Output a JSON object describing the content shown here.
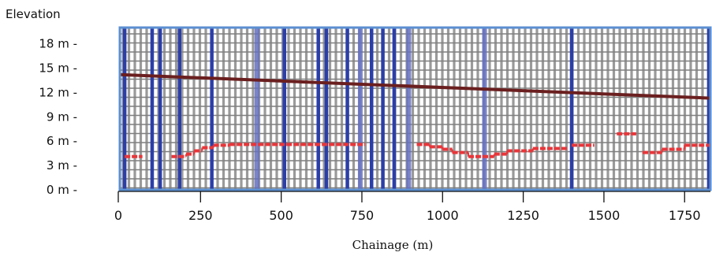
{
  "colors": {
    "plot_border": "#5b8fd1",
    "grid_vertical": "#9a9a9a",
    "grid_horizontal": "#7f7f7f",
    "marker_line": "#2b3ea8",
    "marker_line_faint": "#6470c2",
    "elevation_line": "#6b1f1f",
    "ground_dash": "#e8363a",
    "axis": "#111111"
  },
  "chart_data": {
    "type": "line",
    "xlabel": "Chainage (m)",
    "ylabel": "Elevation",
    "xlim": [
      0,
      1830
    ],
    "ylim": [
      0,
      20
    ],
    "x_ticks": [
      0,
      250,
      500,
      750,
      1000,
      1250,
      1500,
      1750
    ],
    "x_tick_labels": [
      "0",
      "250",
      "500",
      "750",
      "1000",
      "1250",
      "1500",
      "1750"
    ],
    "y_ticks": [
      0,
      3,
      6,
      9,
      12,
      15,
      18
    ],
    "y_tick_labels": [
      "0 m -",
      "3 m -",
      "6 m -",
      "9 m -",
      "12 m -",
      "15 m -",
      "18 m -"
    ],
    "grid": true,
    "series": [
      {
        "kind": "line",
        "x": [
          0,
          1830
        ],
        "y": [
          14.2,
          11.3
        ]
      },
      {
        "kind": "dashed-steps",
        "segments": [
          {
            "x": [
              15,
              70
            ],
            "y": 4.1
          },
          {
            "x": [
              160,
              205
            ],
            "y": 4.1
          },
          {
            "x": [
              205,
              230
            ],
            "y": 4.4
          },
          {
            "x": [
              230,
              255
            ],
            "y": 4.8
          },
          {
            "x": [
              255,
              290
            ],
            "y": 5.2
          },
          {
            "x": [
              290,
              340
            ],
            "y": 5.5
          },
          {
            "x": [
              340,
              760
            ],
            "y": 5.6
          },
          {
            "x": [
              920,
              960
            ],
            "y": 5.6
          },
          {
            "x": [
              960,
              1000
            ],
            "y": 5.3
          },
          {
            "x": [
              1000,
              1030
            ],
            "y": 5.0
          },
          {
            "x": [
              1030,
              1080
            ],
            "y": 4.6
          },
          {
            "x": [
              1080,
              1160
            ],
            "y": 4.1
          },
          {
            "x": [
              1160,
              1200
            ],
            "y": 4.4
          },
          {
            "x": [
              1200,
              1280
            ],
            "y": 4.8
          },
          {
            "x": [
              1280,
              1390
            ],
            "y": 5.1
          },
          {
            "x": [
              1400,
              1470
            ],
            "y": 5.5
          },
          {
            "x": [
              1540,
              1600
            ],
            "y": 6.9
          },
          {
            "x": [
              1620,
              1680
            ],
            "y": 4.6
          },
          {
            "x": [
              1680,
              1750
            ],
            "y": 5.0
          },
          {
            "x": [
              1750,
              1830
            ],
            "y": 5.5
          }
        ]
      },
      {
        "kind": "vertical-markers",
        "x": [
          15,
          100,
          125,
          185,
          285,
          425,
          510,
          615,
          640,
          705,
          745,
          780,
          815,
          850,
          895,
          1130,
          1400,
          1825
        ],
        "faint": [
          425,
          745,
          895,
          1130
        ]
      }
    ]
  }
}
